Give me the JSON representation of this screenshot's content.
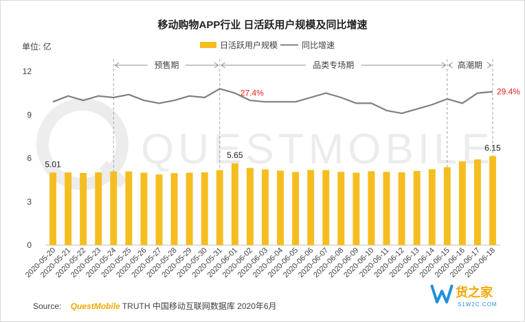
{
  "chart_data": {
    "type": "bar",
    "title": "移动购物APP行业 日活跃用户规模及同比增速",
    "y_unit_label": "单位: 亿",
    "ylim": [
      0,
      12
    ],
    "yticks": [
      0,
      3,
      6,
      9,
      12
    ],
    "grid": false,
    "legend_position": "top-center",
    "categories": [
      "2020-05-20",
      "2020-05-21",
      "2020-05-22",
      "2020-05-23",
      "2020-05-24",
      "2020-05-25",
      "2020-05-26",
      "2020-05-27",
      "2020-05-28",
      "2020-05-29",
      "2020-05-30",
      "2020-05-31",
      "2020-06-01",
      "2020-06-02",
      "2020-06-03",
      "2020-06-04",
      "2020-06-05",
      "2020-06-06",
      "2020-06-07",
      "2020-06-08",
      "2020-06-09",
      "2020-06-10",
      "2020-06-11",
      "2020-06-12",
      "2020-06-13",
      "2020-06-14",
      "2020-06-15",
      "2020-06-16",
      "2020-06-17",
      "2020-06-18"
    ],
    "series": [
      {
        "name": "日活跃用户规模",
        "kind": "bar",
        "color": "#F5BD1F",
        "values": [
          5.01,
          5.02,
          4.98,
          5.03,
          5.08,
          5.09,
          5.0,
          4.88,
          4.97,
          5.0,
          5.03,
          5.17,
          5.65,
          5.33,
          5.23,
          5.14,
          5.05,
          5.19,
          5.18,
          5.06,
          5.0,
          5.1,
          5.06,
          5.03,
          5.12,
          5.24,
          5.38,
          5.78,
          5.92,
          6.15
        ],
        "labels": [
          {
            "index": 0,
            "text": "5.01"
          },
          {
            "index": 12,
            "text": "5.65"
          },
          {
            "index": 29,
            "text": "6.15"
          }
        ]
      },
      {
        "name": "同比增速",
        "kind": "line",
        "color": "#7F7F7F",
        "values": [
          9.9,
          10.3,
          10.0,
          10.3,
          10.2,
          10.4,
          10.0,
          9.8,
          10.0,
          10.3,
          10.2,
          10.8,
          10.5,
          10.0,
          9.9,
          9.9,
          9.9,
          10.2,
          10.5,
          10.2,
          9.8,
          9.8,
          9.3,
          9.1,
          9.4,
          9.7,
          10.1,
          9.8,
          10.5,
          10.6
        ],
        "labels": [
          {
            "index": 12,
            "text": "27.4%",
            "color": "#E0241B"
          },
          {
            "index": 29,
            "text": "29.4%",
            "color": "#E0241B"
          }
        ]
      }
    ],
    "periods": [
      {
        "label": "预售期",
        "from": "2020-05-25",
        "to": "2020-05-31"
      },
      {
        "label": "品类专场期",
        "from": "2020-06-01",
        "to": "2020-06-15"
      },
      {
        "label": "高潮期",
        "from": "2020-06-16",
        "to": "2020-06-18"
      }
    ]
  },
  "source": {
    "prefix": "Source:",
    "brand": "QuestMobile",
    "rest": " TRUTH 中国移动互联网数据库 2020年6月"
  },
  "watermark": "QUESTMOBILE",
  "corner_logo": {
    "name": "货之家",
    "url": "S1W2C.COM"
  },
  "colors": {
    "bar": "#F5BD1F",
    "line": "#7F7F7F",
    "highlight": "#E0241B",
    "brand": "#F5A800",
    "axis": "#BFBFBF",
    "text": "#404040"
  }
}
